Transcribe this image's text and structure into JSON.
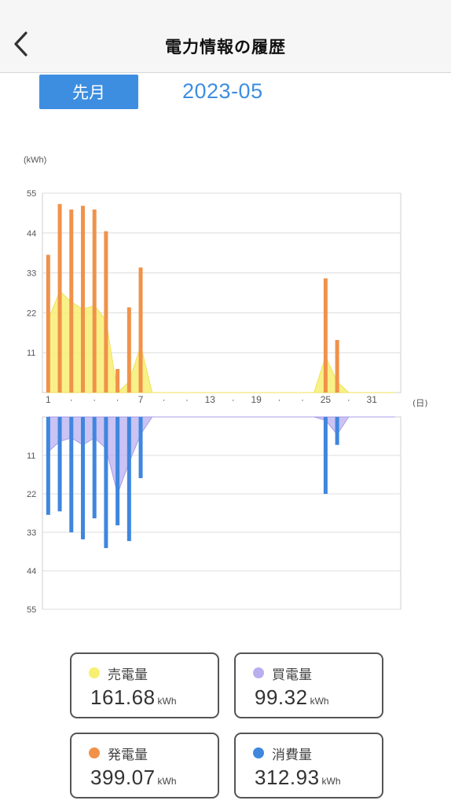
{
  "header": {
    "title": "電力情報の履歴"
  },
  "period": {
    "button_label": "先月",
    "date": "2023-05"
  },
  "chart_data": {
    "type": "bar",
    "unit_label": "(kWh)",
    "x_unit_label": "(日)",
    "x_ticks": [
      "1",
      "·",
      "·",
      "·",
      "7",
      "·",
      "·",
      "13",
      "·",
      "19",
      "·",
      "·",
      "25",
      "·",
      "31"
    ],
    "top_panel": {
      "ylim": [
        0,
        55
      ],
      "y_ticks": [
        "55",
        "44",
        "33",
        "22",
        "11"
      ],
      "series": [
        {
          "name": "発電量",
          "kind": "bar",
          "values": [
            38,
            52,
            50.5,
            51.5,
            50.5,
            44.5,
            6.5,
            23.5,
            34.5,
            0,
            0,
            0,
            0,
            0,
            0,
            0,
            0,
            0,
            0,
            0,
            0,
            0,
            0,
            0,
            31.5,
            14.5,
            0,
            0,
            0,
            0,
            0
          ]
        },
        {
          "name": "売電量",
          "kind": "area",
          "values": [
            20,
            28,
            25,
            23,
            24,
            20,
            0,
            3,
            13,
            0,
            0,
            0,
            0,
            0,
            0,
            0,
            0,
            0,
            0,
            0,
            0,
            0,
            0,
            0,
            10,
            3,
            0,
            0,
            0,
            0,
            0
          ]
        }
      ]
    },
    "bottom_panel": {
      "ylim": [
        0,
        55
      ],
      "y_ticks": [
        "11",
        "22",
        "33",
        "44",
        "55"
      ],
      "series": [
        {
          "name": "消費量",
          "kind": "bar",
          "values": [
            28,
            27,
            33,
            35,
            29,
            37.5,
            31,
            35.5,
            17.5,
            0,
            0,
            0,
            0,
            0,
            0,
            0,
            0,
            0,
            0,
            0,
            0,
            0,
            0,
            0,
            22,
            8,
            0,
            0,
            0,
            0,
            0
          ]
        },
        {
          "name": "買電量",
          "kind": "area",
          "values": [
            10,
            7,
            6,
            8,
            6,
            9,
            22,
            13,
            5,
            0,
            0,
            0,
            0,
            0,
            0,
            0,
            0,
            0,
            0,
            0,
            0,
            0,
            0,
            0,
            1,
            5,
            0,
            0,
            0,
            0,
            0
          ]
        }
      ]
    },
    "colors": {
      "generation": "#f0924a",
      "sold": "#f7ef72",
      "consumption": "#3f86de",
      "bought": "#b8aff0"
    },
    "grid": true
  },
  "cards": [
    {
      "label": "売電量",
      "value": "161.68",
      "unit": "kWh",
      "color": "#f7ef72"
    },
    {
      "label": "買電量",
      "value": "99.32",
      "unit": "kWh",
      "color": "#b8aff0"
    },
    {
      "label": "発電量",
      "value": "399.07",
      "unit": "kWh",
      "color": "#f0924a"
    },
    {
      "label": "消費量",
      "value": "312.93",
      "unit": "kWh",
      "color": "#3f86de"
    }
  ]
}
